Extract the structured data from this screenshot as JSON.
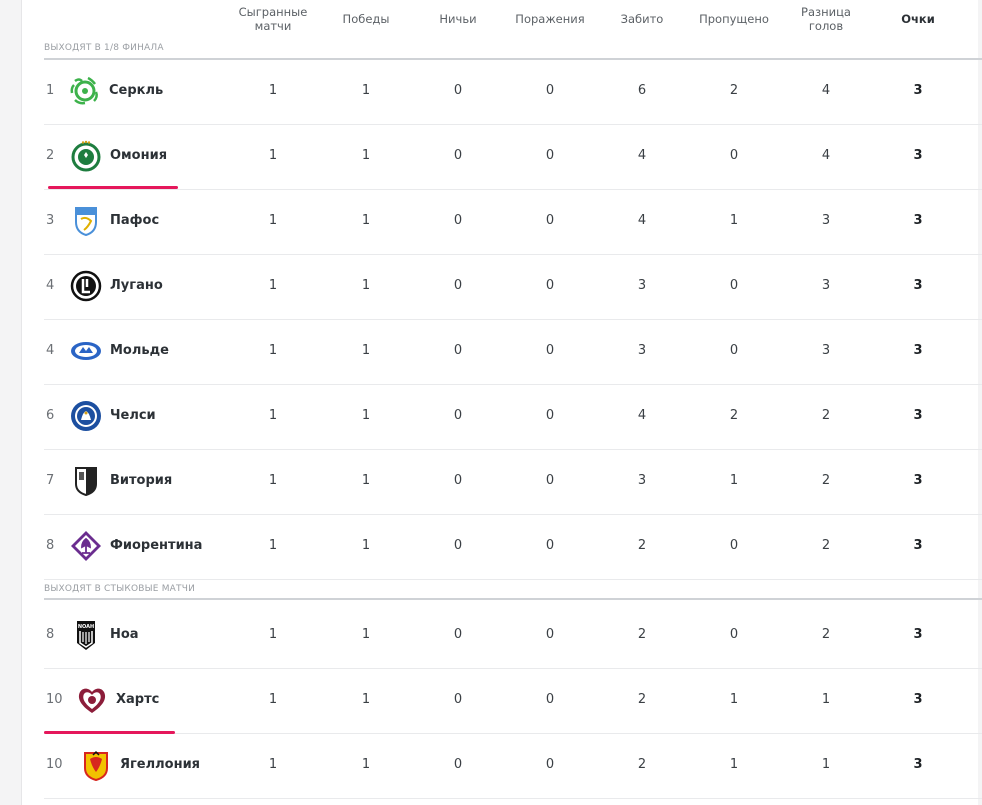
{
  "columns": {
    "played_line1": "Сыгранные",
    "played_line2": "матчи",
    "wins": "Победы",
    "draws": "Ничьи",
    "losses": "Поражения",
    "scored": "Забито",
    "conceded": "Пропущено",
    "diff_line1": "Разница",
    "diff_line2": "голов",
    "points": "Очки"
  },
  "sections": {
    "qualify": "ВЫХОДЯТ В 1/8 ФИНАЛА",
    "playoff": "ВЫХОДЯТ В СТЫКОВЫЕ МАТЧИ"
  },
  "rows": [
    {
      "pos": "1",
      "team": "Серкль",
      "logo": "cercle-logo-icon",
      "played": "1",
      "wins": "1",
      "draws": "0",
      "losses": "0",
      "scored": "6",
      "conceded": "2",
      "diff": "4",
      "points": "3"
    },
    {
      "pos": "2",
      "team": "Омония",
      "logo": "omonia-logo-icon",
      "played": "1",
      "wins": "1",
      "draws": "0",
      "losses": "0",
      "scored": "4",
      "conceded": "0",
      "diff": "4",
      "points": "3"
    },
    {
      "pos": "3",
      "team": "Пафос",
      "logo": "pafos-logo-icon",
      "played": "1",
      "wins": "1",
      "draws": "0",
      "losses": "0",
      "scored": "4",
      "conceded": "1",
      "diff": "3",
      "points": "3"
    },
    {
      "pos": "4",
      "team": "Лугано",
      "logo": "lugano-logo-icon",
      "played": "1",
      "wins": "1",
      "draws": "0",
      "losses": "0",
      "scored": "3",
      "conceded": "0",
      "diff": "3",
      "points": "3"
    },
    {
      "pos": "4",
      "team": "Мольде",
      "logo": "molde-logo-icon",
      "played": "1",
      "wins": "1",
      "draws": "0",
      "losses": "0",
      "scored": "3",
      "conceded": "0",
      "diff": "3",
      "points": "3"
    },
    {
      "pos": "6",
      "team": "Челси",
      "logo": "chelsea-logo-icon",
      "played": "1",
      "wins": "1",
      "draws": "0",
      "losses": "0",
      "scored": "4",
      "conceded": "2",
      "diff": "2",
      "points": "3"
    },
    {
      "pos": "7",
      "team": "Витория",
      "logo": "vitoria-logo-icon",
      "played": "1",
      "wins": "1",
      "draws": "0",
      "losses": "0",
      "scored": "3",
      "conceded": "1",
      "diff": "2",
      "points": "3"
    },
    {
      "pos": "8",
      "team": "Фиорентина",
      "logo": "fiorentina-logo-icon",
      "played": "1",
      "wins": "1",
      "draws": "0",
      "losses": "0",
      "scored": "2",
      "conceded": "0",
      "diff": "2",
      "points": "3"
    },
    {
      "pos": "8",
      "team": "Ноа",
      "logo": "noah-logo-icon",
      "played": "1",
      "wins": "1",
      "draws": "0",
      "losses": "0",
      "scored": "2",
      "conceded": "0",
      "diff": "2",
      "points": "3"
    },
    {
      "pos": "10",
      "team": "Хартс",
      "logo": "hearts-logo-icon",
      "played": "1",
      "wins": "1",
      "draws": "0",
      "losses": "0",
      "scored": "2",
      "conceded": "1",
      "diff": "1",
      "points": "3"
    },
    {
      "pos": "10",
      "team": "Ягеллония",
      "logo": "jagiellonia-logo-icon",
      "played": "1",
      "wins": "1",
      "draws": "0",
      "losses": "0",
      "scored": "2",
      "conceded": "1",
      "diff": "1",
      "points": "3"
    }
  ],
  "colors": {
    "accent_line": "#e5175b",
    "cercle_green": "#3db24b",
    "omonia_green": "#1e7d3f",
    "pafos_blue": "#4a90d9",
    "chelsea_blue": "#1c4fa0",
    "fiorentina_purple": "#6b2d8f",
    "hearts_maroon": "#8c1d3a",
    "jagiellonia_yellow": "#f2c200",
    "jagiellonia_red": "#d7261e",
    "molde_blue": "#2a64c5"
  }
}
